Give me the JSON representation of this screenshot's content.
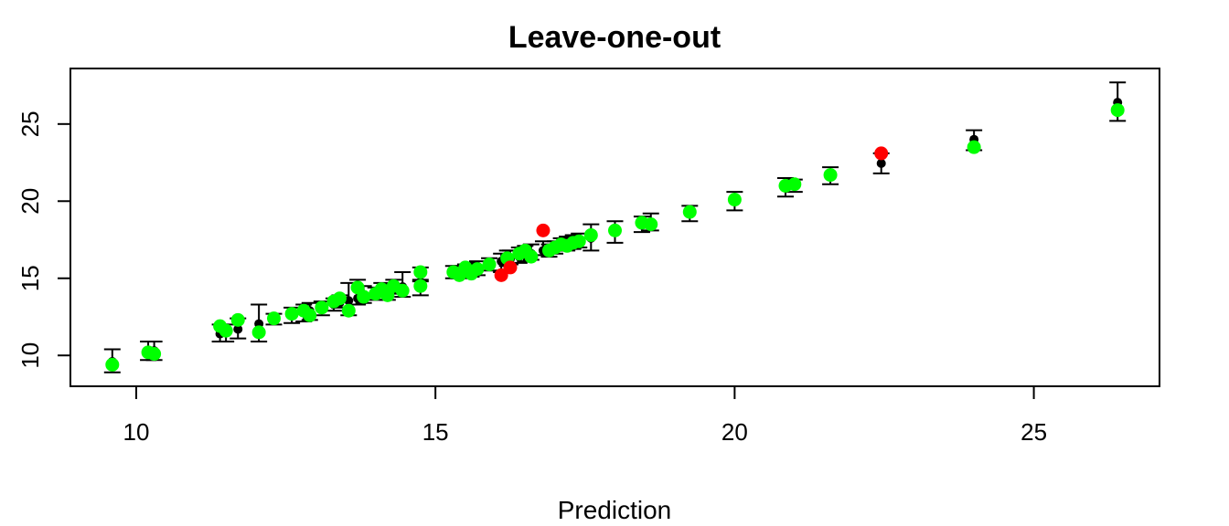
{
  "chart_data": {
    "type": "scatter",
    "title": "Leave-one-out",
    "xlabel": "Prediction",
    "ylabel": "",
    "xlim": [
      8.9,
      27.1
    ],
    "ylim": [
      8.0,
      28.6
    ],
    "xticks": [
      10,
      15,
      20,
      25
    ],
    "yticks": [
      10,
      15,
      20,
      25
    ],
    "colors": {
      "inside_interval": "#00ff00",
      "outside_interval": "#ff0000",
      "prediction": "#000000",
      "error_bar": "#000000"
    },
    "points": [
      {
        "x": 9.6,
        "y": 9.4,
        "lo": 8.9,
        "hi": 10.4,
        "col": "green"
      },
      {
        "x": 10.2,
        "y": 10.2,
        "lo": 9.7,
        "hi": 10.9,
        "col": "green"
      },
      {
        "x": 10.3,
        "y": 10.1,
        "lo": 9.7,
        "hi": 10.9,
        "col": "green"
      },
      {
        "x": 11.4,
        "y": 11.9,
        "lo": 10.9,
        "hi": 12.0,
        "col": "green"
      },
      {
        "x": 11.5,
        "y": 11.6,
        "lo": 10.9,
        "hi": 12.0,
        "col": "green"
      },
      {
        "x": 11.7,
        "y": 12.3,
        "lo": 11.1,
        "hi": 12.4,
        "col": "green"
      },
      {
        "x": 12.05,
        "y": 11.5,
        "lo": 10.9,
        "hi": 13.3,
        "col": "green"
      },
      {
        "x": 12.3,
        "y": 12.4,
        "lo": 12.0,
        "hi": 12.7,
        "col": "green"
      },
      {
        "x": 12.6,
        "y": 12.7,
        "lo": 12.1,
        "hi": 13.1,
        "col": "green"
      },
      {
        "x": 12.8,
        "y": 12.9,
        "lo": 12.2,
        "hi": 13.3,
        "col": "green"
      },
      {
        "x": 12.9,
        "y": 12.6,
        "lo": 12.3,
        "hi": 13.4,
        "col": "green"
      },
      {
        "x": 13.1,
        "y": 13.1,
        "lo": 12.6,
        "hi": 13.5,
        "col": "green"
      },
      {
        "x": 13.3,
        "y": 13.5,
        "lo": 12.9,
        "hi": 13.7,
        "col": "green"
      },
      {
        "x": 13.4,
        "y": 13.7,
        "lo": 13.1,
        "hi": 13.9,
        "col": "green"
      },
      {
        "x": 13.55,
        "y": 12.9,
        "lo": 12.6,
        "hi": 14.7,
        "col": "green"
      },
      {
        "x": 13.7,
        "y": 14.4,
        "lo": 13.3,
        "hi": 14.9,
        "col": "green"
      },
      {
        "x": 13.8,
        "y": 13.8,
        "lo": 13.4,
        "hi": 14.5,
        "col": "green"
      },
      {
        "x": 14.0,
        "y": 14.0,
        "lo": 13.6,
        "hi": 14.4,
        "col": "green"
      },
      {
        "x": 14.1,
        "y": 14.3,
        "lo": 13.8,
        "hi": 14.7,
        "col": "green"
      },
      {
        "x": 14.2,
        "y": 13.9,
        "lo": 13.6,
        "hi": 14.6,
        "col": "green"
      },
      {
        "x": 14.3,
        "y": 14.5,
        "lo": 14.0,
        "hi": 14.9,
        "col": "green"
      },
      {
        "x": 14.45,
        "y": 14.2,
        "lo": 13.8,
        "hi": 15.4,
        "col": "green"
      },
      {
        "x": 14.75,
        "y": 15.4,
        "lo": 14.9,
        "hi": 15.7,
        "col": "green"
      },
      {
        "x": 14.75,
        "y": 14.5,
        "lo": 13.9,
        "hi": 14.8,
        "col": "green"
      },
      {
        "x": 15.3,
        "y": 15.4,
        "lo": 15.0,
        "hi": 15.8,
        "col": "green"
      },
      {
        "x": 15.4,
        "y": 15.2,
        "lo": 15.0,
        "hi": 15.8,
        "col": "green"
      },
      {
        "x": 15.5,
        "y": 15.7,
        "lo": 15.1,
        "hi": 15.9,
        "col": "green"
      },
      {
        "x": 15.6,
        "y": 15.3,
        "lo": 15.1,
        "hi": 16.0,
        "col": "green"
      },
      {
        "x": 15.7,
        "y": 15.6,
        "lo": 15.2,
        "hi": 16.1,
        "col": "green"
      },
      {
        "x": 15.9,
        "y": 15.9,
        "lo": 15.5,
        "hi": 16.3,
        "col": "green"
      },
      {
        "x": 16.1,
        "y": 15.2,
        "lo": 15.4,
        "hi": 16.6,
        "col": "red"
      },
      {
        "x": 16.2,
        "y": 16.3,
        "lo": 15.8,
        "hi": 16.8,
        "col": "green"
      },
      {
        "x": 16.25,
        "y": 15.7,
        "lo": 15.9,
        "hi": 16.8,
        "col": "red"
      },
      {
        "x": 16.4,
        "y": 16.6,
        "lo": 16.0,
        "hi": 17.0,
        "col": "green"
      },
      {
        "x": 16.5,
        "y": 16.8,
        "lo": 16.1,
        "hi": 17.1,
        "col": "green"
      },
      {
        "x": 16.6,
        "y": 16.4,
        "lo": 16.2,
        "hi": 17.2,
        "col": "green"
      },
      {
        "x": 16.8,
        "y": 18.1,
        "lo": 16.5,
        "hi": 17.4,
        "col": "red"
      },
      {
        "x": 16.9,
        "y": 16.8,
        "lo": 16.4,
        "hi": 17.2,
        "col": "green"
      },
      {
        "x": 17.0,
        "y": 17.0,
        "lo": 16.6,
        "hi": 17.4,
        "col": "green"
      },
      {
        "x": 17.1,
        "y": 17.2,
        "lo": 16.8,
        "hi": 17.6,
        "col": "green"
      },
      {
        "x": 17.2,
        "y": 17.1,
        "lo": 16.8,
        "hi": 17.7,
        "col": "green"
      },
      {
        "x": 17.3,
        "y": 17.3,
        "lo": 16.9,
        "hi": 17.8,
        "col": "green"
      },
      {
        "x": 17.4,
        "y": 17.4,
        "lo": 17.0,
        "hi": 17.9,
        "col": "green"
      },
      {
        "x": 17.6,
        "y": 17.8,
        "lo": 16.8,
        "hi": 18.5,
        "col": "green"
      },
      {
        "x": 18.0,
        "y": 18.1,
        "lo": 17.3,
        "hi": 18.7,
        "col": "green"
      },
      {
        "x": 18.45,
        "y": 18.6,
        "lo": 18.0,
        "hi": 19.0,
        "col": "green"
      },
      {
        "x": 18.6,
        "y": 18.5,
        "lo": 18.1,
        "hi": 19.2,
        "col": "green"
      },
      {
        "x": 19.25,
        "y": 19.3,
        "lo": 18.7,
        "hi": 19.7,
        "col": "green"
      },
      {
        "x": 20.0,
        "y": 20.1,
        "lo": 19.4,
        "hi": 20.6,
        "col": "green"
      },
      {
        "x": 20.85,
        "y": 21.0,
        "lo": 20.3,
        "hi": 21.5,
        "col": "green"
      },
      {
        "x": 21.0,
        "y": 21.1,
        "lo": 20.6,
        "hi": 21.4,
        "col": "green"
      },
      {
        "x": 21.6,
        "y": 21.7,
        "lo": 21.1,
        "hi": 22.2,
        "col": "green"
      },
      {
        "x": 22.45,
        "y": 23.1,
        "lo": 21.8,
        "hi": 23.1,
        "col": "red"
      },
      {
        "x": 24.0,
        "y": 23.5,
        "lo": 23.3,
        "hi": 24.6,
        "col": "green"
      },
      {
        "x": 26.4,
        "y": 25.9,
        "lo": 25.2,
        "hi": 27.7,
        "col": "green"
      }
    ]
  }
}
